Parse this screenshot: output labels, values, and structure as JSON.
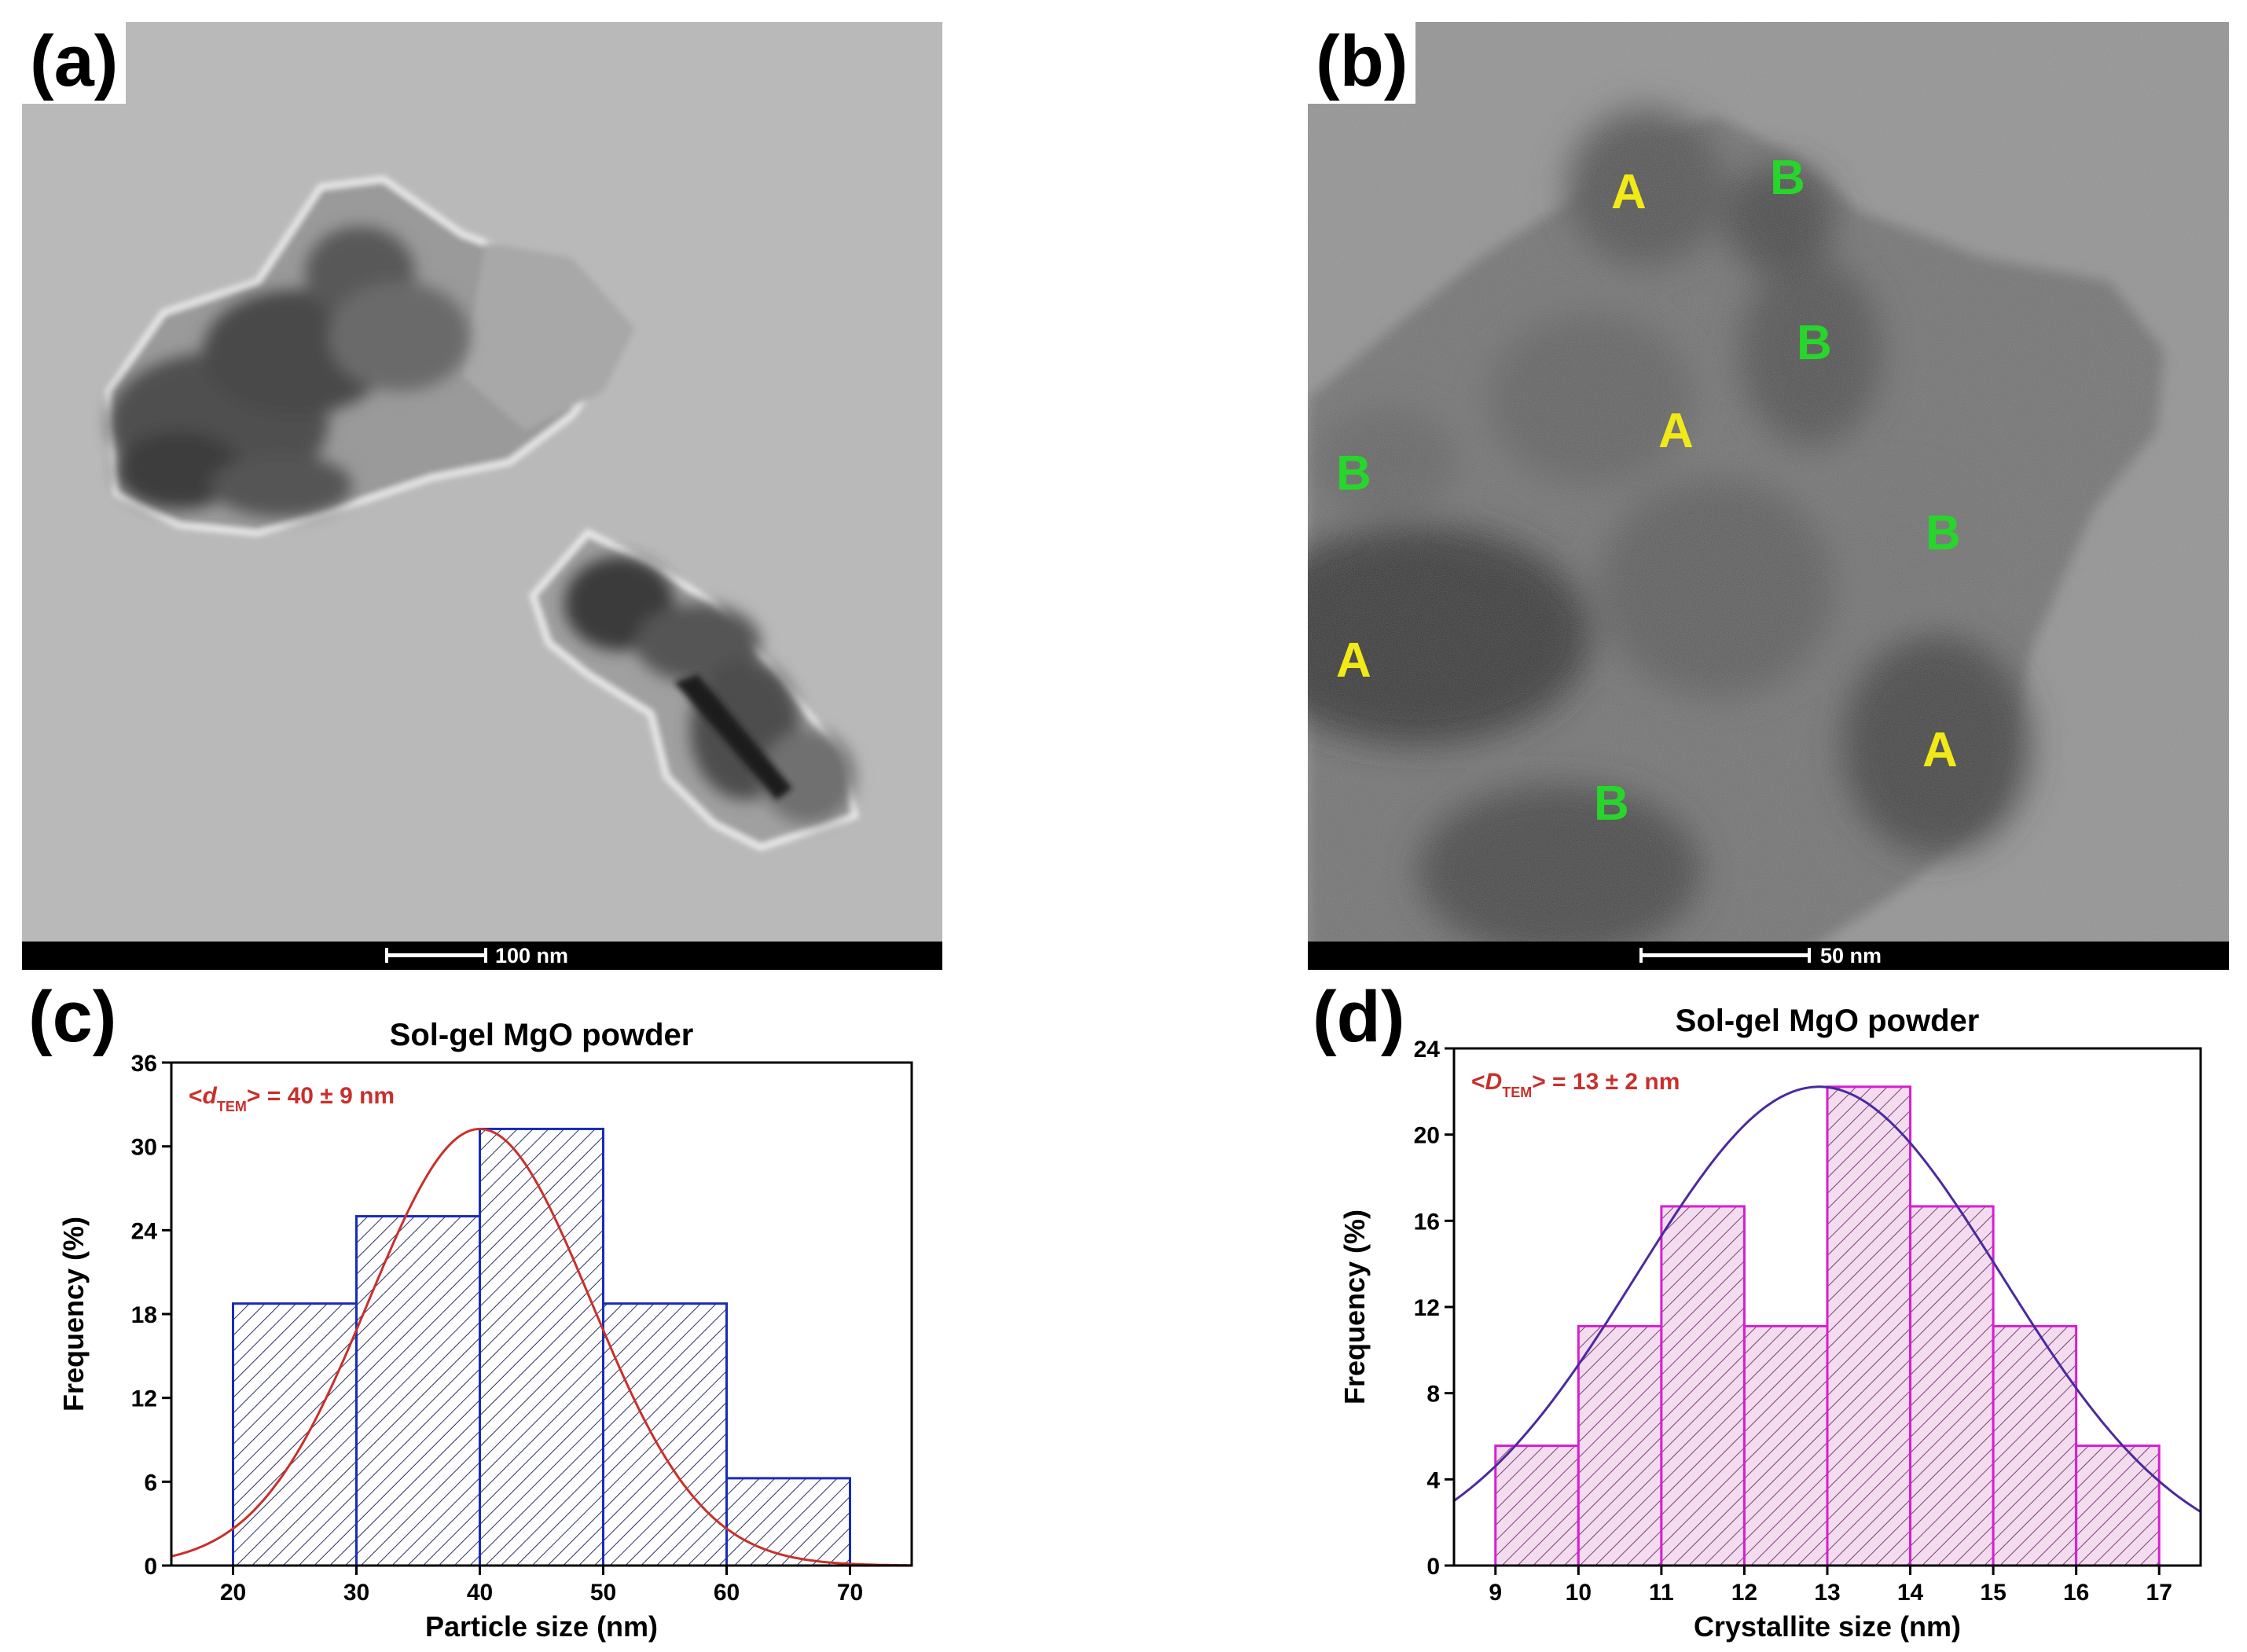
{
  "panels": {
    "a": {
      "label": "(a)",
      "scale_text": "100 nm"
    },
    "b": {
      "label": "(b)",
      "scale_text": "50 nm",
      "markers": [
        {
          "t": "A",
          "c": "#f2ea16"
        },
        {
          "t": "B",
          "c": "#27d62a"
        },
        {
          "t": "B",
          "c": "#27d62a"
        },
        {
          "t": "A",
          "c": "#f2ea16"
        },
        {
          "t": "B",
          "c": "#27d62a"
        },
        {
          "t": "B",
          "c": "#27d62a"
        },
        {
          "t": "A",
          "c": "#f2ea16"
        },
        {
          "t": "B",
          "c": "#27d62a"
        },
        {
          "t": "A",
          "c": "#f2ea16"
        }
      ]
    },
    "c": {
      "label": "(c)"
    },
    "d": {
      "label": "(d)"
    }
  },
  "chart_data": [
    {
      "type": "bar",
      "title": "Sol-gel MgO powder",
      "xlabel": "Particle size (nm)",
      "ylabel": "Frequency (%)",
      "annotation": {
        "open": "<",
        "var": "d",
        "sub": "TEM",
        "close": "> = 40 ± 9 nm"
      },
      "bin_edges": [
        20,
        30,
        40,
        50,
        60,
        70
      ],
      "values": [
        18.75,
        25.0,
        31.25,
        18.75,
        6.25
      ],
      "xlim": [
        15,
        75
      ],
      "ylim": [
        0,
        36
      ],
      "xticks": [
        20,
        30,
        40,
        50,
        60,
        70
      ],
      "yticks": [
        0,
        6,
        12,
        18,
        24,
        30,
        36
      ],
      "fit": {
        "type": "gaussian",
        "mean": 40,
        "sigma": 9,
        "peak": 31.25
      },
      "colors": {
        "bar": "#1a2bb8",
        "hatch": "#2c3060",
        "fit": "#c9302c",
        "annotation": "#c9302c"
      }
    },
    {
      "type": "bar",
      "title": "Sol-gel MgO powder",
      "xlabel": "Crystallite size (nm)",
      "ylabel": "Frequency (%)",
      "annotation": {
        "open": "<",
        "var": "D",
        "sub": "TEM",
        "close": "> = 13 ± 2 nm"
      },
      "bin_edges": [
        9,
        10,
        11,
        12,
        13,
        14,
        15,
        16,
        17
      ],
      "values": [
        5.56,
        11.11,
        16.67,
        11.11,
        22.22,
        16.67,
        11.11,
        5.56
      ],
      "xlim": [
        8.5,
        17.5
      ],
      "ylim": [
        0,
        24
      ],
      "xticks": [
        9,
        10,
        11,
        12,
        13,
        14,
        15,
        16,
        17
      ],
      "yticks": [
        0,
        4,
        8,
        12,
        16,
        20,
        24
      ],
      "fit": {
        "type": "gaussian",
        "mean": 12.9,
        "sigma": 2.2,
        "peak": 22.22
      },
      "colors": {
        "bar": "#d61fd0",
        "fill": "#f4dcef",
        "hatch": "#7a3f78",
        "fit": "#4a2aa0",
        "annotation": "#c9302c"
      }
    }
  ]
}
